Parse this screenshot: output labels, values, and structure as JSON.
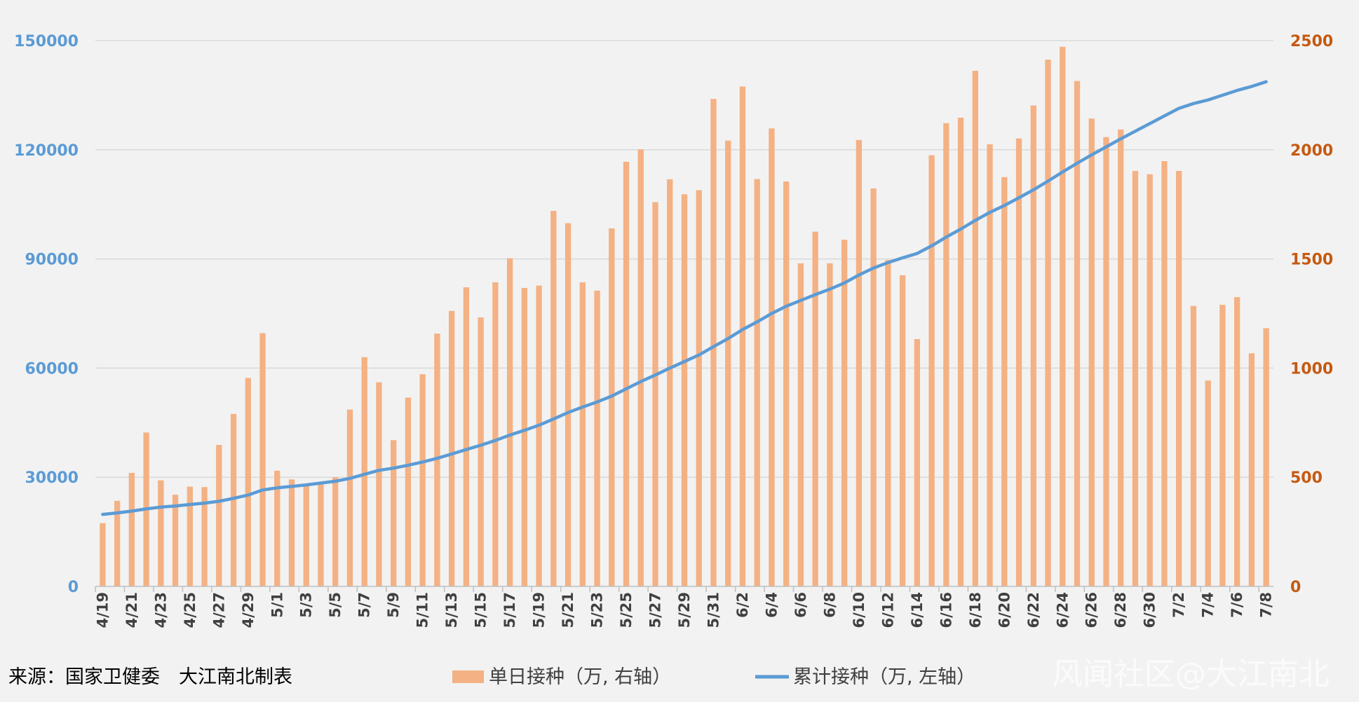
{
  "chart_data": {
    "type": "bar",
    "categories": [
      "4/19",
      "4/20",
      "4/21",
      "4/22",
      "4/23",
      "4/24",
      "4/25",
      "4/26",
      "4/27",
      "4/28",
      "4/29",
      "4/30",
      "5/1",
      "5/2",
      "5/3",
      "5/4",
      "5/5",
      "5/6",
      "5/7",
      "5/8",
      "5/9",
      "5/10",
      "5/11",
      "5/12",
      "5/13",
      "5/14",
      "5/15",
      "5/16",
      "5/17",
      "5/18",
      "5/19",
      "5/20",
      "5/21",
      "5/22",
      "5/23",
      "5/24",
      "5/25",
      "5/26",
      "5/27",
      "5/28",
      "5/29",
      "5/30",
      "5/31",
      "6/1",
      "6/2",
      "6/3",
      "6/4",
      "6/5",
      "6/6",
      "6/7",
      "6/8",
      "6/9",
      "6/10",
      "6/11",
      "6/12",
      "6/13",
      "6/14",
      "6/15",
      "6/16",
      "6/17",
      "6/18",
      "6/19",
      "6/20",
      "6/21",
      "6/22",
      "6/23",
      "6/24",
      "6/25",
      "6/26",
      "6/27",
      "6/28",
      "6/29",
      "6/30",
      "7/1",
      "7/2",
      "7/3",
      "7/4",
      "7/5",
      "7/6",
      "7/7",
      "7/8"
    ],
    "x_tick_labels": [
      "4/19",
      "4/21",
      "4/23",
      "4/25",
      "4/27",
      "4/29",
      "5/1",
      "5/3",
      "5/5",
      "5/7",
      "5/9",
      "5/11",
      "5/13",
      "5/15",
      "5/17",
      "5/19",
      "5/21",
      "5/23",
      "5/25",
      "5/27",
      "5/29",
      "5/31",
      "6/2",
      "6/4",
      "6/6",
      "6/8",
      "6/10",
      "6/12",
      "6/14",
      "6/16",
      "6/18",
      "6/20",
      "6/22",
      "6/24",
      "6/26",
      "6/28",
      "6/30",
      "7/2",
      "7/4",
      "7/6",
      "7/8"
    ],
    "series": [
      {
        "name": "单日接种（万, 右轴）",
        "type": "bar",
        "axis": "right",
        "color": "#f4b183",
        "values": [
          290,
          392,
          520,
          705,
          486,
          420,
          457,
          455,
          648,
          790,
          955,
          1160,
          530,
          490,
          460,
          470,
          500,
          810,
          1050,
          935,
          670,
          865,
          972,
          1158,
          1262,
          1370,
          1232,
          1393,
          1503,
          1367,
          1378,
          1720,
          1664,
          1393,
          1355,
          1640,
          1945,
          2002,
          1760,
          1865,
          1796,
          1815,
          2233,
          2042,
          2290,
          1866,
          2098,
          1855,
          1480,
          1625,
          1480,
          1588,
          2045,
          1823,
          1495,
          1425,
          1133,
          1975,
          2122,
          2147,
          2362,
          2025,
          1875,
          2052,
          2203,
          2413,
          2472,
          2315,
          2143,
          2058,
          2093,
          1903,
          1888,
          1948,
          1903,
          1285,
          943,
          1290,
          1325,
          1068,
          1183
        ]
      },
      {
        "name": "累计接种（万, 左轴）",
        "type": "line",
        "axis": "left",
        "color": "#5b9bd5",
        "values": [
          19800,
          20200,
          20700,
          21300,
          21800,
          22100,
          22500,
          22900,
          23400,
          24200,
          25100,
          26500,
          27100,
          27500,
          27900,
          28400,
          28900,
          29700,
          30800,
          31900,
          32500,
          33300,
          34200,
          35200,
          36400,
          37600,
          38800,
          40100,
          41600,
          42900,
          44300,
          46000,
          47800,
          49300,
          50700,
          52300,
          54300,
          56300,
          58100,
          60000,
          61800,
          63600,
          65900,
          68100,
          70600,
          72700,
          75000,
          77000,
          78600,
          80200,
          81700,
          83400,
          85600,
          87500,
          89000,
          90300,
          91500,
          93600,
          96000,
          98200,
          100600,
          102800,
          104700,
          106800,
          109000,
          111400,
          113900,
          116300,
          118600,
          120800,
          123000,
          125100,
          127200,
          129300,
          131400,
          132700,
          133700,
          135000,
          136300,
          137400,
          138700
        ]
      }
    ],
    "y_left": {
      "ylim": [
        0,
        150000
      ],
      "ticks": [
        "0",
        "30000",
        "60000",
        "90000",
        "120000",
        "150000"
      ],
      "color": "#5b9bd5"
    },
    "y_right": {
      "ylim": [
        0,
        2500
      ],
      "ticks": [
        "0",
        "500",
        "1000",
        "1500",
        "2000",
        "2500"
      ],
      "color": "#c55a11"
    },
    "grid": true,
    "legend_position": "bottom-center"
  },
  "footer": {
    "source": "来源：国家卫健委　大江南北制表",
    "legend_bar_label": "单日接种（万, 右轴）",
    "legend_line_label": "累计接种（万, 左轴）",
    "watermark": "风闻社区@大江南北"
  }
}
